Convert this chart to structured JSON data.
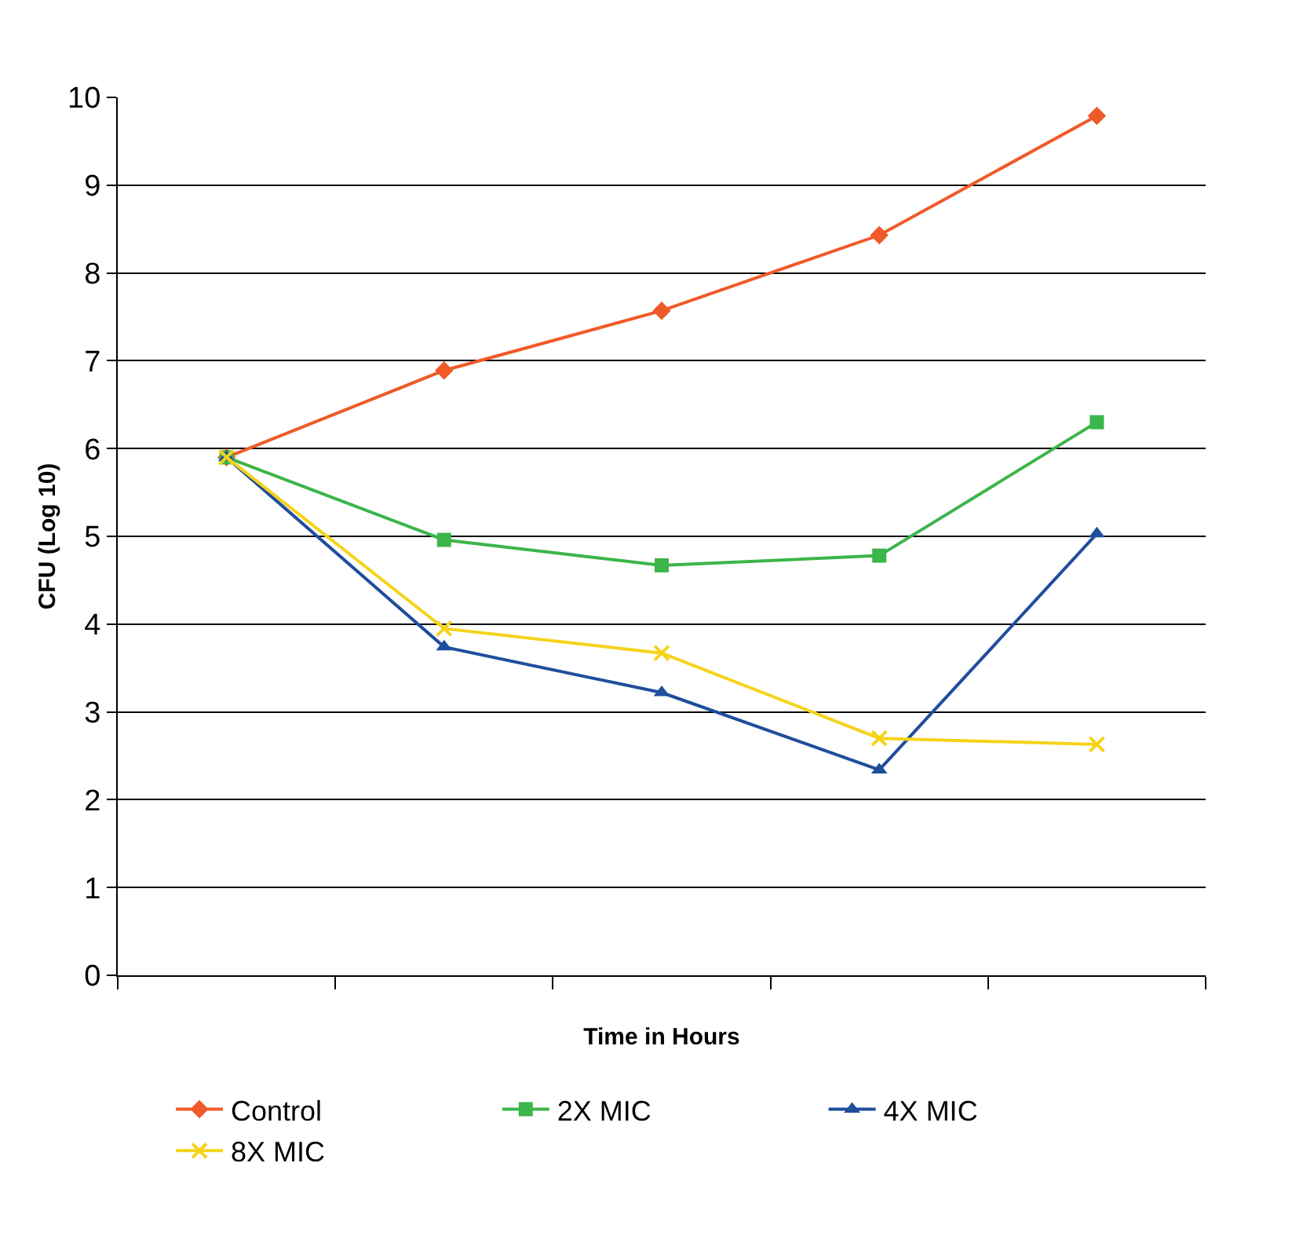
{
  "chart_data": {
    "type": "line",
    "xlabel": "Time in Hours",
    "ylabel": "CFU (Log 10)",
    "categories": [
      null,
      null,
      null,
      null,
      null
    ],
    "ylim": [
      0,
      10
    ],
    "yticks": [
      0,
      1,
      2,
      3,
      4,
      5,
      6,
      7,
      8,
      9,
      10
    ],
    "grid": "y",
    "legend": "bottom",
    "tick_labels": "y",
    "line_style": "solid",
    "series": [
      {
        "name": "Control",
        "color": "#f05a28",
        "marker": "diamond",
        "values": [
          5.9,
          6.89,
          7.57,
          8.43,
          9.79
        ]
      },
      {
        "name": "2X MIC",
        "color": "#3cb54a",
        "marker": "square",
        "values": [
          5.9,
          4.96,
          4.67,
          4.78,
          6.3
        ]
      },
      {
        "name": "4X MIC",
        "color": "#1f4e9c",
        "marker": "triangle",
        "values": [
          5.9,
          3.74,
          3.22,
          2.34,
          5.03
        ]
      },
      {
        "name": "8X MIC",
        "color": "#f5d31a",
        "marker": "cross",
        "values": [
          5.9,
          3.95,
          3.67,
          2.7,
          2.63
        ]
      }
    ]
  }
}
